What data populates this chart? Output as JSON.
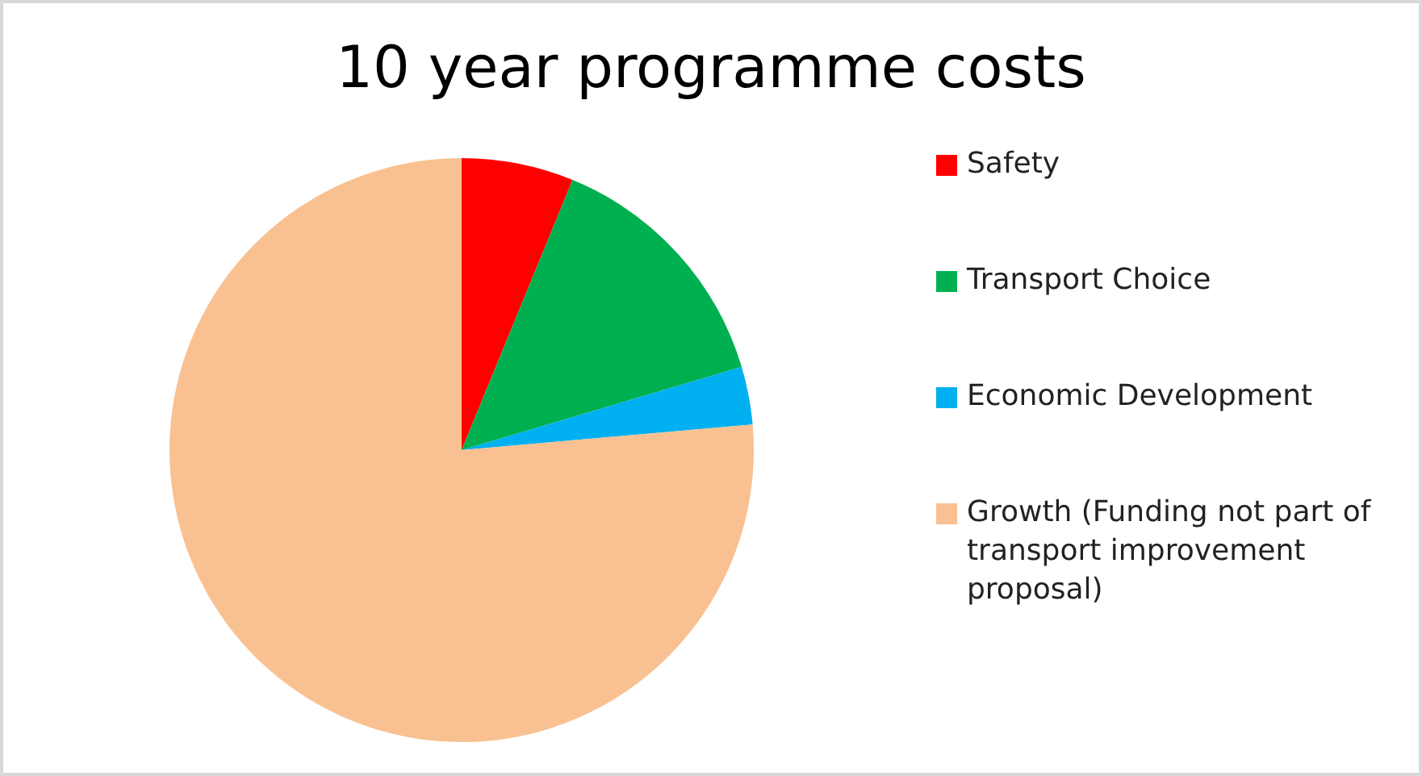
{
  "chart_data": {
    "type": "pie",
    "title": "10 year programme costs",
    "categories": [
      "Safety",
      "Transport Choice",
      "Economic Development",
      "Growth (Funding not part of transport improvement proposal)"
    ],
    "values": [
      6.2,
      14.2,
      3.2,
      76.4
    ],
    "colors": [
      "#ff0000",
      "#00b050",
      "#00b0f0",
      "#f9c191"
    ],
    "legend": "right"
  }
}
